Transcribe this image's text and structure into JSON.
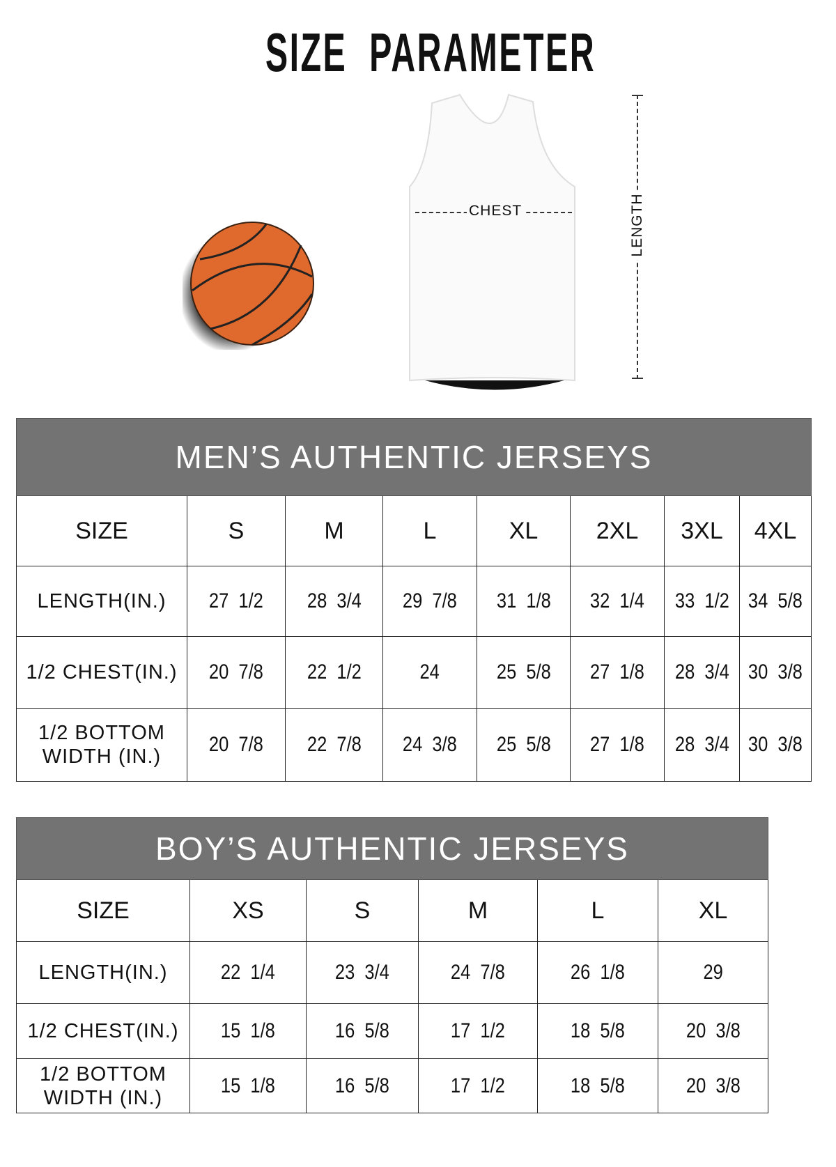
{
  "title": "SIZE  PARAMETER",
  "diagram": {
    "chest_label": "CHEST",
    "length_label": "LENGTH",
    "ball_color": "#e0692d",
    "header_color": "#737373"
  },
  "mens_table": {
    "title": "MEN’S AUTHENTIC JERSEYS",
    "size_label": "SIZE",
    "sizes": [
      "S",
      "M",
      "L",
      "XL",
      "2XL",
      "3XL",
      "4XL"
    ],
    "rows": [
      {
        "label": "LENGTH(IN.)",
        "values": [
          "27  1/2",
          "28  3/4",
          "29  7/8",
          "31  1/8",
          "32  1/4",
          "33  1/2",
          "34  5/8"
        ]
      },
      {
        "label": "1/2 CHEST(IN.)",
        "values": [
          "20  7/8",
          "22  1/2",
          "24",
          "25  5/8",
          "27  1/8",
          "28  3/4",
          "30  3/8"
        ]
      },
      {
        "label": "1/2 BOTTOM\nWIDTH  (IN.)",
        "values": [
          "20  7/8",
          "22  7/8",
          "24  3/8",
          "25  5/8",
          "27  1/8",
          "28  3/4",
          "30  3/8"
        ]
      }
    ]
  },
  "boys_table": {
    "title": "BOY’S AUTHENTIC JERSEYS",
    "size_label": "SIZE",
    "sizes": [
      "XS",
      "S",
      "M",
      "L",
      "XL"
    ],
    "rows": [
      {
        "label": "LENGTH(IN.)",
        "values": [
          "22  1/4",
          "23  3/4",
          "24  7/8",
          "26  1/8",
          "29"
        ]
      },
      {
        "label": "1/2 CHEST(IN.)",
        "values": [
          "15  1/8",
          "16  5/8",
          "17  1/2",
          "18  5/8",
          "20  3/8"
        ]
      },
      {
        "label": "1/2 BOTTOM\nWIDTH  (IN.)",
        "values": [
          "15  1/8",
          "16  5/8",
          "17  1/2",
          "18  5/8",
          "20  3/8"
        ]
      }
    ]
  }
}
